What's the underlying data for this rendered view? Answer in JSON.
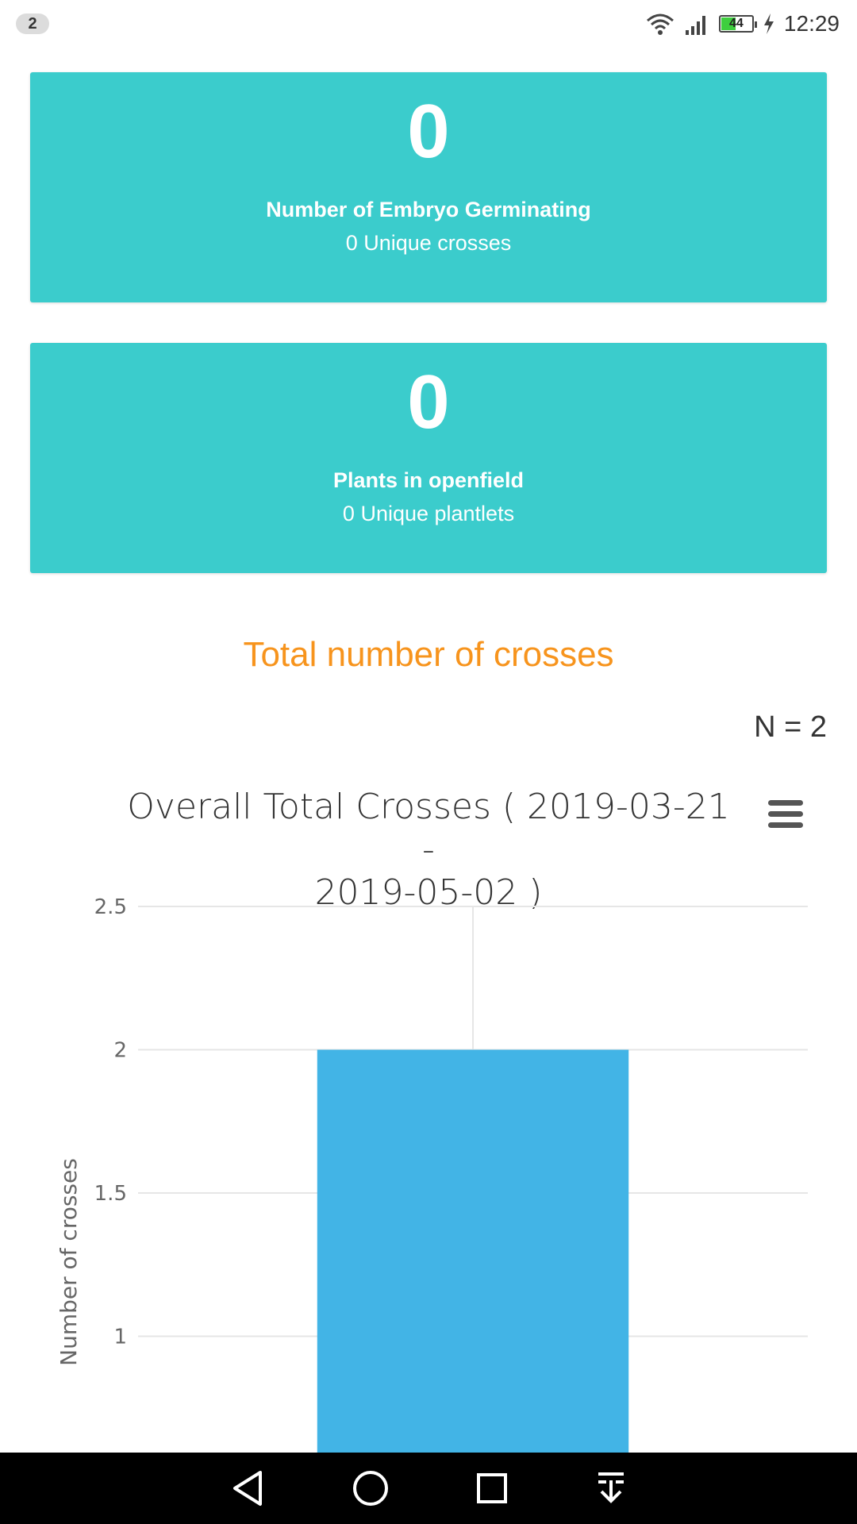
{
  "status_bar": {
    "notification_count": "2",
    "battery_level": "44",
    "time": "12:29"
  },
  "cards": [
    {
      "count": "0",
      "title": "Number of Embryo Germinating",
      "subtitle": "0 Unique crosses"
    },
    {
      "count": "0",
      "title": "Plants in openfield",
      "subtitle": "0 Unique plantlets"
    }
  ],
  "section": {
    "title": "Total number of crosses",
    "n_label": "N = 2"
  },
  "chart_title_line1": "Overall Total Crosses ( 2019-03-21 -",
  "chart_title_line2": "2019-05-02 )",
  "chart_data": {
    "type": "bar",
    "categories": [
      ""
    ],
    "values": [
      2
    ],
    "ylabel": "Number of crosses",
    "ylim": [
      0,
      2.5
    ],
    "yticks": [
      "2.5",
      "2",
      "1.5",
      "1"
    ],
    "bar_color": "#42b4e6",
    "grid": true
  },
  "colors": {
    "card": "#3bcccc",
    "section_title": "#f7941d",
    "bar": "#42b4e6"
  },
  "icons": [
    "wifi-icon",
    "signal-icon",
    "battery-icon",
    "charging-icon",
    "menu-icon",
    "back-icon",
    "home-icon",
    "recents-icon",
    "notification-pull-icon"
  ]
}
